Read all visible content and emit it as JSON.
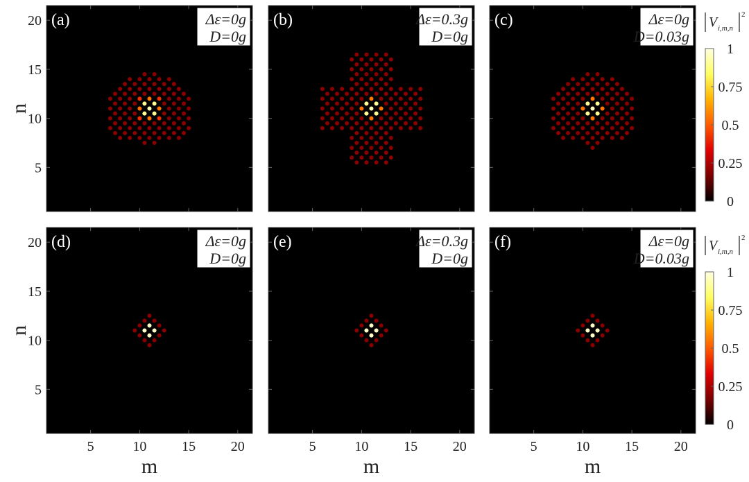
{
  "chart_data": {
    "type": "scatter",
    "xlabel": "m",
    "ylabel": "n",
    "xlim": [
      0.5,
      21.5
    ],
    "ylim": [
      0.5,
      21.5
    ],
    "xticks": [
      "5",
      "10",
      "15",
      "20"
    ],
    "yticks": [
      "5",
      "10",
      "15",
      "20"
    ],
    "background_color": "#000000",
    "colorbar": {
      "title": "|V i,m,n|²",
      "symbol": "V",
      "subscript": "i,m,n",
      "superscript": "2",
      "ticks": [
        "0",
        "0.25",
        "0.5",
        "0.75",
        "1"
      ],
      "range": [
        0,
        1
      ],
      "colormap": [
        "#000000",
        "#7a0000",
        "#e00000",
        "#ff5a00",
        "#ffb300",
        "#ffff60",
        "#ffffe0"
      ]
    },
    "panels": [
      {
        "label": "(a)",
        "ann1": "Δε=0g",
        "ann2": "D=0g",
        "row": 0,
        "col": 0,
        "rows": [
          [
            7.5,
            [
              10.5,
              11.5
            ]
          ],
          [
            8,
            [
              8,
              9,
              10,
              11,
              12,
              13,
              14
            ]
          ],
          [
            8.5,
            [
              7.5,
              8.5,
              9.5,
              10.5,
              11.5,
              12.5,
              13.5,
              14.5
            ]
          ],
          [
            9,
            [
              7,
              8,
              9,
              10,
              11,
              12,
              13,
              14,
              15
            ]
          ],
          [
            9.5,
            [
              7.5,
              8.5,
              9.5,
              10.5,
              11.5,
              12.5,
              13.5,
              14.5
            ]
          ],
          [
            10,
            [
              7,
              8,
              9,
              10,
              11,
              12,
              13,
              14,
              15
            ]
          ],
          [
            10.5,
            [
              7.5,
              8.5,
              9.5,
              10.5,
              11.5,
              12.5,
              13.5,
              14.5
            ]
          ],
          [
            11,
            [
              7,
              8,
              9,
              10,
              11,
              12,
              13,
              14,
              15
            ]
          ],
          [
            11.5,
            [
              7.5,
              8.5,
              9.5,
              10.5,
              11.5,
              12.5,
              13.5,
              14.5
            ]
          ],
          [
            12,
            [
              7,
              8,
              9,
              10,
              11,
              12,
              13,
              14,
              15
            ]
          ],
          [
            12.5,
            [
              7.5,
              8.5,
              9.5,
              10.5,
              11.5,
              12.5,
              13.5,
              14.5
            ]
          ],
          [
            13,
            [
              8,
              9,
              10,
              11,
              12,
              13,
              14
            ]
          ],
          [
            13.5,
            [
              8.5,
              9.5,
              10.5,
              11.5,
              12.5,
              13.5
            ]
          ],
          [
            14,
            [
              9,
              10,
              11,
              12,
              13
            ]
          ],
          [
            14.5,
            [
              10.5,
              11.5
            ]
          ]
        ],
        "hot": [
          [
            10.5,
            11.5,
            0.9
          ],
          [
            11.5,
            11.5,
            0.9
          ],
          [
            10.5,
            10.5,
            0.9
          ],
          [
            11.5,
            10.5,
            0.9
          ],
          [
            11,
            11,
            0.95
          ],
          [
            10,
            11,
            0.55
          ],
          [
            12,
            11,
            0.55
          ],
          [
            11,
            12,
            0.55
          ],
          [
            11,
            10,
            0.55
          ],
          [
            10,
            12,
            0.42
          ],
          [
            12,
            12,
            0.42
          ],
          [
            10,
            10,
            0.42
          ],
          [
            12,
            10,
            0.42
          ]
        ]
      },
      {
        "label": "(b)",
        "ann1": "Δε=0.3g",
        "ann2": "D=0g",
        "row": 0,
        "col": 1,
        "rows": [
          [
            5.5,
            [
              9.5,
              10.5,
              11.5,
              12.5
            ]
          ],
          [
            6,
            [
              9,
              10,
              11,
              12,
              13
            ]
          ],
          [
            6.5,
            [
              9.5,
              10.5,
              11.5,
              12.5
            ]
          ],
          [
            7,
            [
              9,
              10,
              11,
              12,
              13
            ]
          ],
          [
            7.5,
            [
              9.5,
              10.5,
              11.5,
              12.5
            ]
          ],
          [
            8,
            [
              9,
              10,
              11,
              12,
              13
            ]
          ],
          [
            8.5,
            [
              9.5,
              10.5,
              11.5,
              12.5
            ]
          ],
          [
            9,
            [
              6,
              7,
              8,
              9,
              10,
              11,
              12,
              13,
              14,
              15,
              16
            ]
          ],
          [
            9.5,
            [
              6.5,
              7.5,
              8.5,
              9.5,
              10.5,
              11.5,
              12.5,
              13.5,
              14.5,
              15.5
            ]
          ],
          [
            10,
            [
              6,
              7,
              8,
              9,
              10,
              11,
              12,
              13,
              14,
              15,
              16
            ]
          ],
          [
            10.5,
            [
              6.5,
              7.5,
              8.5,
              9.5,
              10.5,
              11.5,
              12.5,
              13.5,
              14.5,
              15.5
            ]
          ],
          [
            11,
            [
              6,
              7,
              8,
              9,
              10,
              11,
              12,
              13,
              14,
              15,
              16
            ]
          ],
          [
            11.5,
            [
              6.5,
              7.5,
              8.5,
              9.5,
              10.5,
              11.5,
              12.5,
              13.5,
              14.5,
              15.5
            ]
          ],
          [
            12,
            [
              6,
              7,
              8,
              9,
              10,
              11,
              12,
              13,
              14,
              15,
              16
            ]
          ],
          [
            12.5,
            [
              6.5,
              7.5,
              8.5,
              9.5,
              10.5,
              11.5,
              12.5,
              13.5,
              14.5,
              15.5
            ]
          ],
          [
            13,
            [
              6,
              7,
              8,
              9,
              10,
              11,
              12,
              13,
              14,
              15,
              16
            ]
          ],
          [
            13.5,
            [
              9.5,
              10.5,
              11.5,
              12.5
            ]
          ],
          [
            14,
            [
              9,
              10,
              11,
              12,
              13
            ]
          ],
          [
            14.5,
            [
              9.5,
              10.5,
              11.5,
              12.5
            ]
          ],
          [
            15,
            [
              9,
              10,
              11,
              12,
              13
            ]
          ],
          [
            15.5,
            [
              9.5,
              10.5,
              11.5,
              12.5
            ]
          ],
          [
            16,
            [
              9,
              10,
              11,
              12,
              13
            ]
          ],
          [
            16.5,
            [
              9.5,
              10.5,
              11.5,
              12.5
            ]
          ]
        ],
        "hot": [
          [
            10.5,
            11.5,
            0.9
          ],
          [
            11.5,
            11.5,
            0.9
          ],
          [
            10.5,
            10.5,
            0.9
          ],
          [
            11.5,
            10.5,
            0.9
          ],
          [
            11,
            11,
            0.95
          ],
          [
            10,
            11,
            0.55
          ],
          [
            12,
            11,
            0.55
          ],
          [
            11,
            12,
            0.55
          ],
          [
            11,
            10,
            0.55
          ]
        ]
      },
      {
        "label": "(c)",
        "ann1": "Δε=0g",
        "ann2": "D=0.03g",
        "row": 0,
        "col": 2,
        "rows": [
          [
            7,
            [
              11
            ]
          ],
          [
            7.5,
            [
              10.5,
              11.5
            ]
          ],
          [
            8,
            [
              8,
              9,
              10,
              11,
              12,
              13,
              14
            ]
          ],
          [
            8.5,
            [
              7.5,
              8.5,
              9.5,
              10.5,
              11.5,
              12.5,
              13.5,
              14.5
            ]
          ],
          [
            9,
            [
              7,
              8,
              9,
              10,
              11,
              12,
              13,
              14,
              15
            ]
          ],
          [
            9.5,
            [
              7.5,
              8.5,
              9.5,
              10.5,
              11.5,
              12.5,
              13.5,
              14.5
            ]
          ],
          [
            10,
            [
              7,
              8,
              9,
              10,
              11,
              12,
              13,
              14,
              15
            ]
          ],
          [
            10.5,
            [
              7.5,
              8.5,
              9.5,
              10.5,
              11.5,
              12.5,
              13.5,
              14.5
            ]
          ],
          [
            11,
            [
              7,
              8,
              9,
              10,
              11,
              12,
              13,
              14,
              15
            ]
          ],
          [
            11.5,
            [
              7.5,
              8.5,
              9.5,
              10.5,
              11.5,
              12.5,
              13.5,
              14.5
            ]
          ],
          [
            12,
            [
              7,
              8,
              9,
              10,
              11,
              12,
              13,
              14,
              15
            ]
          ],
          [
            12.5,
            [
              7.5,
              8.5,
              9.5,
              10.5,
              11.5,
              12.5,
              13.5,
              14.5
            ]
          ],
          [
            13,
            [
              8,
              9,
              10,
              11,
              12,
              13,
              14
            ]
          ],
          [
            13.5,
            [
              8.5,
              9.5,
              10.5,
              11.5,
              12.5,
              13.5
            ]
          ],
          [
            14,
            [
              9,
              10,
              11,
              12,
              13
            ]
          ],
          [
            14.5,
            [
              10.5,
              11.5
            ]
          ]
        ],
        "hot": [
          [
            10.5,
            11.5,
            0.9
          ],
          [
            11.5,
            11.5,
            0.9
          ],
          [
            10.5,
            10.5,
            0.9
          ],
          [
            11.5,
            10.5,
            0.9
          ],
          [
            11,
            11,
            0.95
          ],
          [
            10,
            11,
            0.55
          ],
          [
            12,
            11,
            0.55
          ],
          [
            11,
            12,
            0.55
          ],
          [
            11,
            10,
            0.55
          ]
        ]
      },
      {
        "label": "(d)",
        "ann1": "Δε=0g",
        "ann2": "D=0g",
        "row": 1,
        "col": 0,
        "rows": [
          [
            9.5,
            [
              11
            ]
          ],
          [
            10,
            [
              10.5,
              11.5
            ]
          ],
          [
            10.5,
            [
              10,
              11,
              12
            ]
          ],
          [
            11,
            [
              9.5,
              10.5,
              11.5,
              12.5
            ]
          ],
          [
            11.5,
            [
              10,
              11,
              12
            ]
          ],
          [
            12,
            [
              10.5,
              11.5
            ]
          ],
          [
            12.5,
            [
              11
            ]
          ]
        ],
        "hot": [
          [
            11,
            11.5,
            0.97
          ],
          [
            11,
            10.5,
            0.97
          ],
          [
            10.5,
            11,
            0.97
          ],
          [
            11.5,
            11,
            0.97
          ]
        ]
      },
      {
        "label": "(e)",
        "ann1": "Δε=0.3g",
        "ann2": "D=0g",
        "row": 1,
        "col": 1,
        "rows": [
          [
            9.5,
            [
              11
            ]
          ],
          [
            10,
            [
              10.5,
              11.5
            ]
          ],
          [
            10.5,
            [
              10,
              11,
              12
            ]
          ],
          [
            11,
            [
              9.5,
              10.5,
              11.5,
              12.5
            ]
          ],
          [
            11.5,
            [
              10,
              11,
              12
            ]
          ],
          [
            12,
            [
              10.5,
              11.5
            ]
          ],
          [
            12.5,
            [
              11
            ]
          ]
        ],
        "hot": [
          [
            11,
            11.5,
            0.97
          ],
          [
            11,
            10.5,
            0.97
          ],
          [
            10.5,
            11,
            0.97
          ],
          [
            11.5,
            11,
            0.97
          ]
        ]
      },
      {
        "label": "(f)",
        "ann1": "Δε=0g",
        "ann2": "D=0.03g",
        "row": 1,
        "col": 2,
        "rows": [
          [
            9.5,
            [
              11
            ]
          ],
          [
            10,
            [
              10.5,
              11.5
            ]
          ],
          [
            10.5,
            [
              10,
              11,
              12
            ]
          ],
          [
            11,
            [
              9.5,
              10.5,
              11.5,
              12.5
            ]
          ],
          [
            11.5,
            [
              10,
              11,
              12
            ]
          ],
          [
            12,
            [
              10.5,
              11.5
            ]
          ],
          [
            12.5,
            [
              11
            ]
          ]
        ],
        "hot": [
          [
            11,
            11.5,
            0.97
          ],
          [
            11,
            10.5,
            0.97
          ],
          [
            10.5,
            11,
            0.97
          ],
          [
            11.5,
            11,
            0.97
          ]
        ]
      }
    ]
  }
}
